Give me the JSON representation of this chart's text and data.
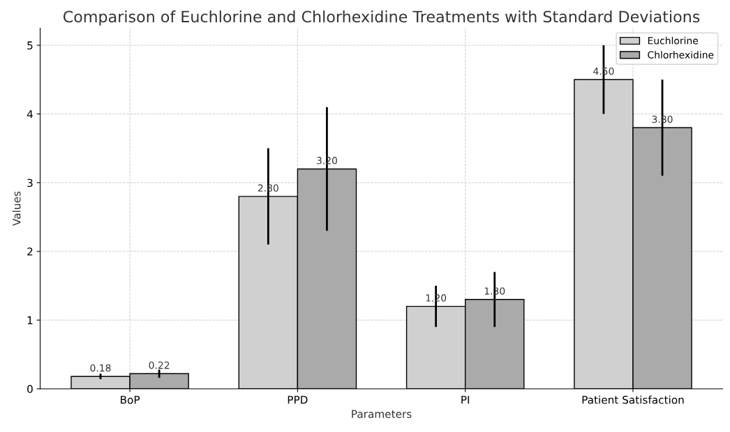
{
  "chart_data": {
    "type": "bar",
    "title": "Comparison of Euchlorine and Chlorhexidine Treatments with Standard Deviations",
    "xlabel": "Parameters",
    "ylabel": "Values",
    "categories": [
      "BoP",
      "PPD",
      "PI",
      "Patient Satisfaction"
    ],
    "series": [
      {
        "name": "Euchlorine",
        "color": "#d0d0d0",
        "values": [
          0.18,
          2.8,
          1.2,
          4.5
        ],
        "errors": [
          0.04,
          0.7,
          0.3,
          0.5
        ],
        "value_labels": [
          "0.18",
          "2.80",
          "1.20",
          "4.50"
        ]
      },
      {
        "name": "Chlorhexidine",
        "color": "#aaaaaa",
        "values": [
          0.22,
          3.2,
          1.3,
          3.8
        ],
        "errors": [
          0.06,
          0.9,
          0.4,
          0.7
        ],
        "value_labels": [
          "0.22",
          "3.20",
          "1.30",
          "3.80"
        ]
      }
    ],
    "ylim": [
      0,
      5.25
    ],
    "yticks": [
      0,
      1,
      2,
      3,
      4,
      5
    ],
    "grid": true,
    "legend": "top right"
  }
}
